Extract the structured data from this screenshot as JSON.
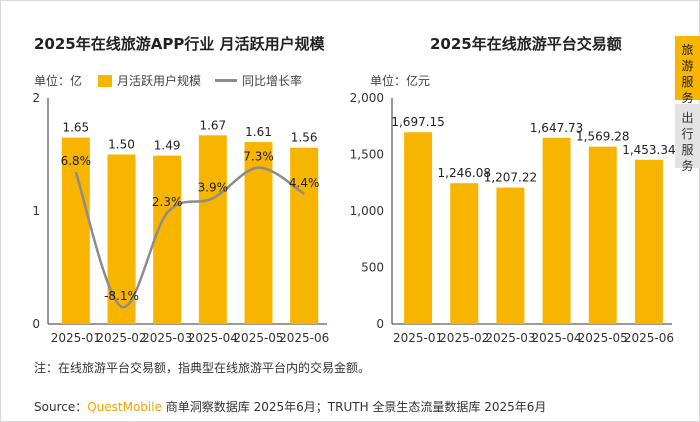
{
  "side_tabs": [
    {
      "label": "旅游服务",
      "active": true
    },
    {
      "label": "出行服务",
      "active": false
    }
  ],
  "note": "注：在线旅游平台交易额，指典型在线旅游平台内的交易金额。",
  "source": {
    "prefix": "Source：",
    "brand": "QuestMobile",
    "text": " 商单洞察数据库 2025年6月；TRUTH 全景生态流量数据库 2025年6月"
  },
  "colors": {
    "bar": "#f7b500",
    "line": "#8c8c8c",
    "axis": "#333333"
  },
  "chart_data": [
    {
      "type": "bar",
      "title": "2025年在线旅游APP行业 月活跃用户规模",
      "unit": "单位：亿",
      "categories": [
        "2025-01",
        "2025-02",
        "2025-03",
        "2025-04",
        "2025-05",
        "2025-06"
      ],
      "series": [
        {
          "name": "月活跃用户规模",
          "type": "bar",
          "values": [
            1.65,
            1.5,
            1.49,
            1.67,
            1.61,
            1.56
          ],
          "labels": [
            "1.65",
            "1.50",
            "1.49",
            "1.67",
            "1.61",
            "1.56"
          ]
        },
        {
          "name": "同比增长率",
          "type": "line",
          "values": [
            6.8,
            -8.1,
            2.3,
            3.9,
            7.3,
            4.4
          ],
          "labels": [
            "6.8%",
            "-8.1%",
            "2.3%",
            "3.9%",
            "7.3%",
            "4.4%"
          ]
        }
      ],
      "yticks": [
        "0",
        "1",
        "2"
      ],
      "ylim": [
        0,
        2
      ],
      "y2lim": [
        -10,
        15
      ]
    },
    {
      "type": "bar",
      "title": "2025年在线旅游平台交易额",
      "unit": "单位：亿元",
      "categories": [
        "2025-01",
        "2025-02",
        "2025-03",
        "2025-04",
        "2025-05",
        "2025-06"
      ],
      "values": [
        1697.15,
        1246.08,
        1207.22,
        1647.73,
        1569.28,
        1453.34
      ],
      "labels": [
        "1,697.15",
        "1,246.08",
        "1,207.22",
        "1,647.73",
        "1,569.28",
        "1,453.34"
      ],
      "yticks": [
        "0",
        "500",
        "1,000",
        "1,500",
        "2,000"
      ],
      "ylim": [
        0,
        2000
      ]
    }
  ]
}
